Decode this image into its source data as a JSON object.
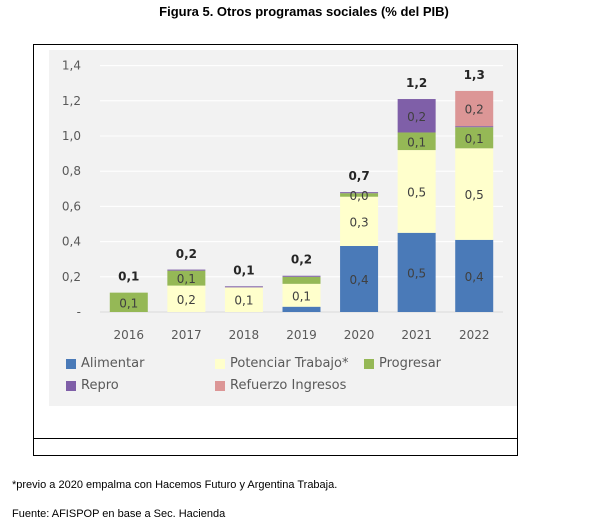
{
  "figure_title": "Figura 5. Otros programas sociales (% del PIB)",
  "footnote": "*previo a 2020 empalma con Hacemos Futuro y Argentina Trabaja.",
  "source": "Fuente: AFISPOP en base a Sec. Hacienda",
  "chart_data": {
    "type": "bar",
    "stacked": true,
    "title": "",
    "xlabel": "",
    "ylabel": "",
    "ylim": [
      0,
      1.4
    ],
    "yticks": [
      0,
      0.2,
      0.4,
      0.6,
      0.8,
      1.0,
      1.2,
      1.4
    ],
    "ytick_labels": [
      "-",
      "0,2",
      "0,4",
      "0,6",
      "0,8",
      "1,0",
      "1,2",
      "1,4"
    ],
    "grid": true,
    "legend_position": "bottom",
    "categories": [
      "2016",
      "2017",
      "2018",
      "2019",
      "2020",
      "2021",
      "2022"
    ],
    "series": [
      {
        "name": "Alimentar",
        "color": "#4a7ab8",
        "values": [
          0,
          0,
          0,
          0.03,
          0.375,
          0.45,
          0.41
        ],
        "labels": [
          "",
          "",
          "",
          "",
          "0,4",
          "0,5",
          "0,4"
        ]
      },
      {
        "name": "Potenciar Trabajo*",
        "color": "#ffffcc",
        "values": [
          0,
          0.15,
          0.14,
          0.13,
          0.28,
          0.47,
          0.52
        ],
        "labels": [
          "",
          "0,2",
          "0,1",
          "0,1",
          "0,3",
          "0,5",
          "0,5"
        ]
      },
      {
        "name": "Progresar",
        "color": "#95b856",
        "values": [
          0.11,
          0.085,
          0,
          0.04,
          0.02,
          0.1,
          0.12
        ],
        "labels": [
          "0,1",
          "0,1",
          "",
          "",
          "0,0",
          "0,1",
          "0,1"
        ]
      },
      {
        "name": "Repro",
        "color": "#7f5fa8",
        "values": [
          0,
          0.006,
          0.006,
          0.006,
          0.006,
          0.19,
          0.006
        ],
        "labels": [
          "",
          "",
          "",
          "",
          "",
          "0,2",
          ""
        ]
      },
      {
        "name": "Refuerzo Ingresos",
        "color": "#dc9696",
        "values": [
          0,
          0,
          0,
          0,
          0,
          0,
          0.2
        ],
        "labels": [
          "",
          "",
          "",
          "",
          "",
          "",
          "0,2"
        ]
      }
    ],
    "totals": [
      0.11,
      0.24,
      0.146,
      0.206,
      0.681,
      1.21,
      1.256
    ],
    "total_labels": [
      "0,1",
      "0,2",
      "0,1",
      "0,2",
      "0,7",
      "1,2",
      "1,3"
    ],
    "legend": [
      {
        "name": "Alimentar",
        "color": "#4a7ab8"
      },
      {
        "name": "Potenciar Trabajo*",
        "color": "#ffffcc"
      },
      {
        "name": "Progresar",
        "color": "#95b856"
      },
      {
        "name": "Repro",
        "color": "#7f5fa8"
      },
      {
        "name": "Refuerzo Ingresos",
        "color": "#dc9696"
      }
    ]
  }
}
